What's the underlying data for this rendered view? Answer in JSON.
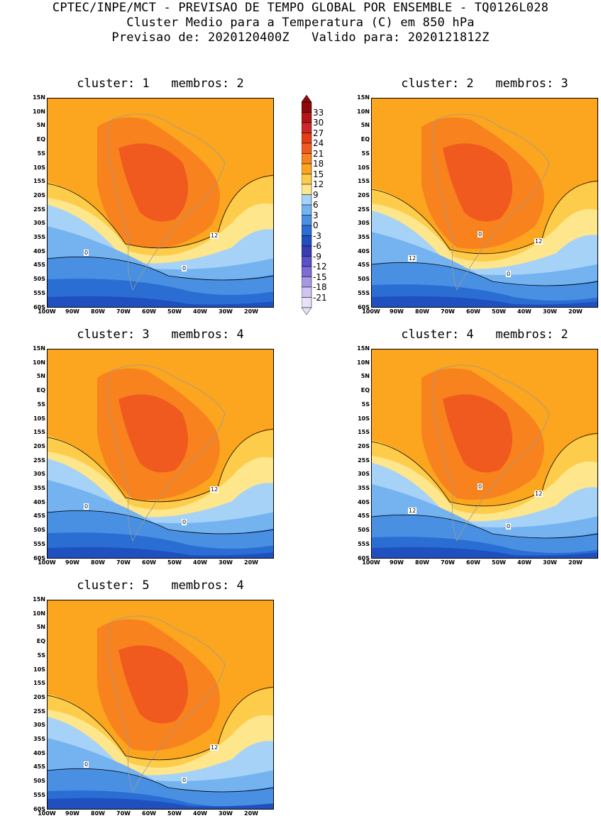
{
  "header": {
    "line1": "CPTEC/INPE/MCT - PREVISAO DE TEMPO GLOBAL POR ENSEMBLE - TQ0126L028",
    "line2": "Cluster Medio para a Temperatura (C) em 850 hPa",
    "line3": "Previsao de: 2020120400Z   Valido para: 2020121812Z"
  },
  "axes": {
    "lat_labels": [
      "15N",
      "10N",
      "5N",
      "EQ",
      "5S",
      "10S",
      "15S",
      "20S",
      "25S",
      "30S",
      "35S",
      "40S",
      "45S",
      "50S",
      "55S",
      "60S"
    ],
    "lon_labels": [
      "100W",
      "90W",
      "80W",
      "70W",
      "60W",
      "50W",
      "40W",
      "30W",
      "20W"
    ]
  },
  "colorbar": {
    "levels": [
      "33",
      "30",
      "27",
      "24",
      "21",
      "18",
      "15",
      "12",
      "9",
      "6",
      "3",
      "0",
      "-3",
      "-6",
      "-9",
      "-12",
      "-15",
      "-18",
      "-21"
    ],
    "colors": [
      "#8c0a0a",
      "#b41414",
      "#cc2828",
      "#e63c14",
      "#f05a1e",
      "#f8821e",
      "#fca51e",
      "#fdcc4a",
      "#fde68c",
      "#a6d2f8",
      "#74b2f0",
      "#4a90e2",
      "#2a6ed4",
      "#2050c0",
      "#3a3cb4",
      "#5a50c8",
      "#7c6cd6",
      "#a898e4",
      "#cfc4f0",
      "#e8e2f8"
    ]
  },
  "panels": [
    {
      "title": "cluster: 1   membros: 2",
      "contour_labels": [
        "12",
        "0",
        "0"
      ]
    },
    {
      "title": "cluster: 2   membros: 3",
      "contour_labels": [
        "12",
        "12",
        "0",
        "0"
      ]
    },
    {
      "title": "cluster: 3   membros: 4",
      "contour_labels": [
        "12",
        "0",
        "0"
      ]
    },
    {
      "title": "cluster: 4   membros: 2",
      "contour_labels": [
        "12",
        "12",
        "0",
        "0"
      ]
    },
    {
      "title": "cluster: 5   membros: 4",
      "contour_labels": [
        "12",
        "0",
        "0"
      ]
    }
  ]
}
